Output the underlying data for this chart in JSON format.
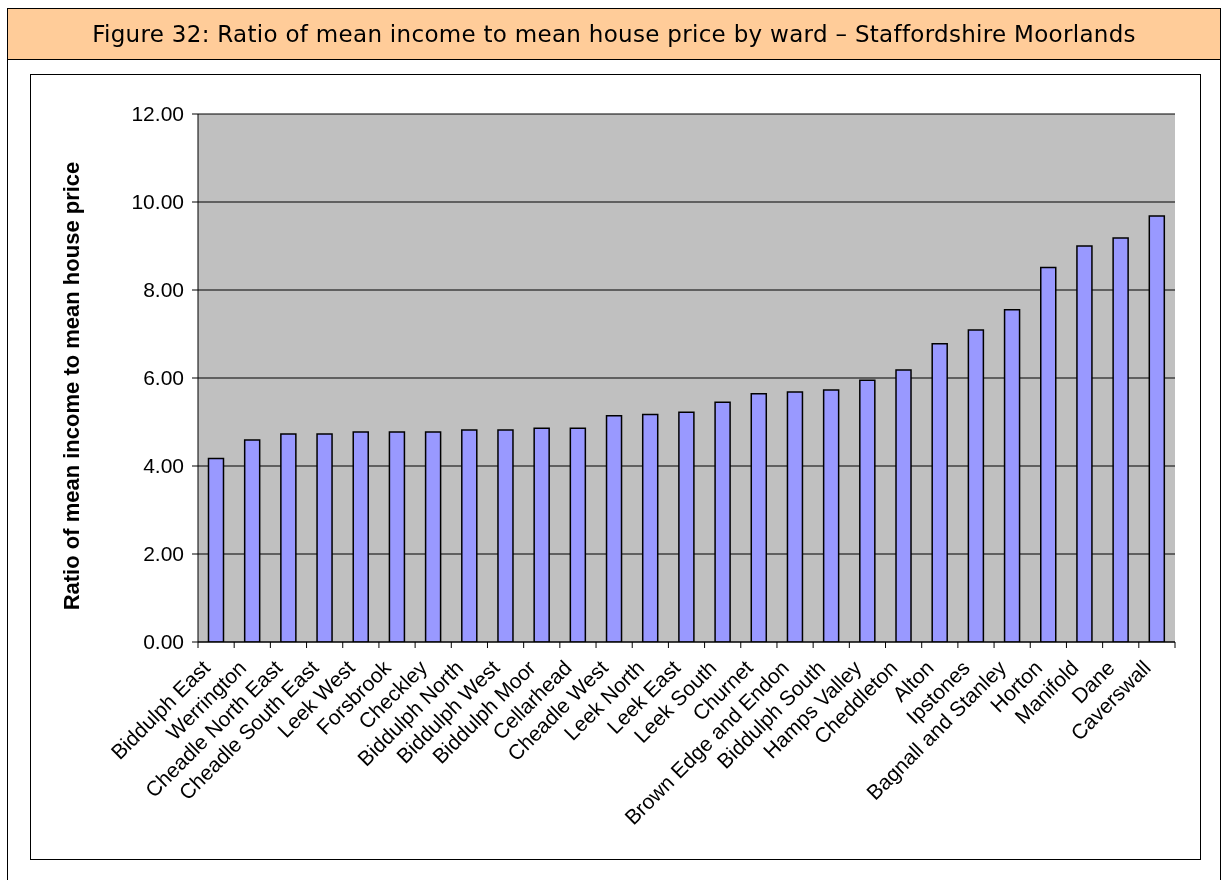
{
  "chart_data": {
    "type": "bar",
    "title": "Figure 32: Ratio of mean income to mean house price by ward – Staffordshire Moorlands",
    "ylabel": "Ratio of mean income to mean house price",
    "categories": [
      "Biddulph East",
      "Werrington",
      "Cheadle North East",
      "Cheadle South East",
      "Leek West",
      "Forsbrook",
      "Checkley",
      "Biddulph North",
      "Biddulph West",
      "Biddulph Moor",
      "Cellarhead",
      "Cheadle West",
      "Leek North",
      "Leek East",
      "Leek South",
      "Churnet",
      "Brown Edge and Endon",
      "Biddulph South",
      "Hamps Valley",
      "Cheddleton",
      "Alton",
      "Ipstones",
      "Bagnall and Stanley",
      "Horton",
      "Manifold",
      "Dane",
      "Caverswall"
    ],
    "values": [
      4.17,
      4.59,
      4.73,
      4.73,
      4.77,
      4.77,
      4.77,
      4.82,
      4.82,
      4.86,
      4.86,
      5.14,
      5.17,
      5.22,
      5.45,
      5.64,
      5.68,
      5.73,
      5.95,
      6.18,
      6.78,
      7.09,
      7.55,
      8.51,
      9.0,
      9.18,
      9.68
    ],
    "color": "#9999ff",
    "ylim": [
      0,
      12
    ],
    "yticks": [
      {
        "value": 0,
        "label": "0.00"
      },
      {
        "value": 2,
        "label": "2.00"
      },
      {
        "value": 4,
        "label": "4.00"
      },
      {
        "value": 6,
        "label": "6.00"
      },
      {
        "value": 8,
        "label": "8.00"
      },
      {
        "value": 10,
        "label": "10.00"
      },
      {
        "value": 12,
        "label": "12.00"
      }
    ],
    "grid": "y"
  }
}
